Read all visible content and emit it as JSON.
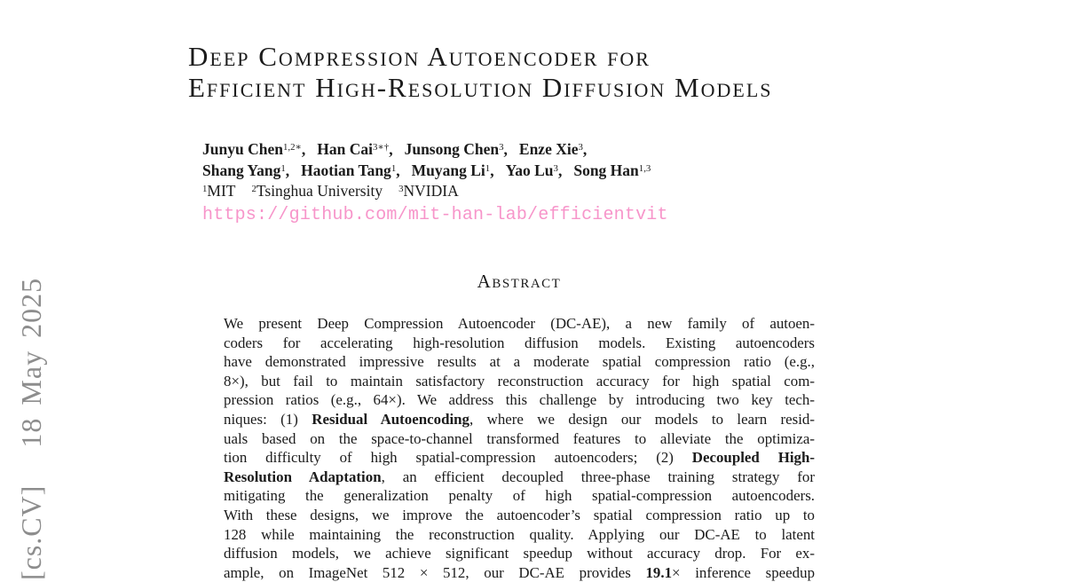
{
  "colors": {
    "text": "#1b1b1b",
    "link_pink": "#f795ca",
    "watermark_gray": "#8d8d8d",
    "background": "#ffffff"
  },
  "watermark": {
    "text": "[cs.CV]   18 May 2025"
  },
  "title": {
    "line1": "Deep Compression Autoencoder for",
    "line2": "Efficient High-Resolution Diffusion Models"
  },
  "authors": {
    "line1": [
      {
        "name": "Junyu Chen",
        "sup": "1,2∗",
        "comma": true
      },
      {
        "name": "Han Cai",
        "sup": "3∗†",
        "comma": true
      },
      {
        "name": "Junsong Chen",
        "sup": "3",
        "comma": true
      },
      {
        "name": "Enze Xie",
        "sup": "3",
        "comma": true
      }
    ],
    "line2": [
      {
        "name": "Shang Yang",
        "sup": "1",
        "comma": true
      },
      {
        "name": "Haotian Tang",
        "sup": "1",
        "comma": true
      },
      {
        "name": "Muyang Li",
        "sup": "1",
        "comma": true
      },
      {
        "name": "Yao Lu",
        "sup": "3",
        "comma": true
      },
      {
        "name": "Song Han",
        "sup": "1,3",
        "comma": false
      }
    ],
    "affiliations": [
      {
        "sup": "1",
        "label": "MIT"
      },
      {
        "sup": "2",
        "label": "Tsinghua University"
      },
      {
        "sup": "3",
        "label": "NVIDIA"
      }
    ],
    "link": "https://github.com/mit-han-lab/efficientvit"
  },
  "abstract": {
    "heading": "Abstract",
    "lines": [
      [
        {
          "t": "We present Deep Compression Autoencoder (DC-AE), a new family of autoen-"
        }
      ],
      [
        {
          "t": "coders for accelerating high-resolution diffusion models. Existing autoencoders"
        }
      ],
      [
        {
          "t": "have demonstrated impressive results at a moderate spatial compression ratio (e.g.,"
        }
      ],
      [
        {
          "t": "8×), but fail to maintain satisfactory reconstruction accuracy for high spatial com-"
        }
      ],
      [
        {
          "t": "pression ratios (e.g., 64×). We address this challenge by introducing two key tech-"
        }
      ],
      [
        {
          "t": "niques: (1) "
        },
        {
          "t": "Residual Autoencoding",
          "b": true
        },
        {
          "t": ", where we design our models to learn resid-"
        }
      ],
      [
        {
          "t": "uals based on the space-to-channel transformed features to alleviate the optimiza-"
        }
      ],
      [
        {
          "t": "tion difficulty of high spatial-compression autoencoders; (2) "
        },
        {
          "t": "Decoupled High-",
          "b": true
        }
      ],
      [
        {
          "t": "Resolution Adaptation",
          "b": true
        },
        {
          "t": ", an efficient decoupled three-phase training strategy for"
        }
      ],
      [
        {
          "t": "mitigating the generalization penalty of high spatial-compression autoencoders."
        }
      ],
      [
        {
          "t": "With these designs, we improve the autoencoder’s spatial compression ratio up to"
        }
      ],
      [
        {
          "t": "128 while maintaining the reconstruction quality. Applying our DC-AE to latent"
        }
      ],
      [
        {
          "t": "diffusion models, we achieve significant speedup without accuracy drop. For ex-"
        }
      ],
      [
        {
          "t": "ample, on ImageNet 512 × 512, our DC-AE provides "
        },
        {
          "t": "19.1",
          "b": true
        },
        {
          "t": "× inference speedup"
        }
      ]
    ]
  }
}
